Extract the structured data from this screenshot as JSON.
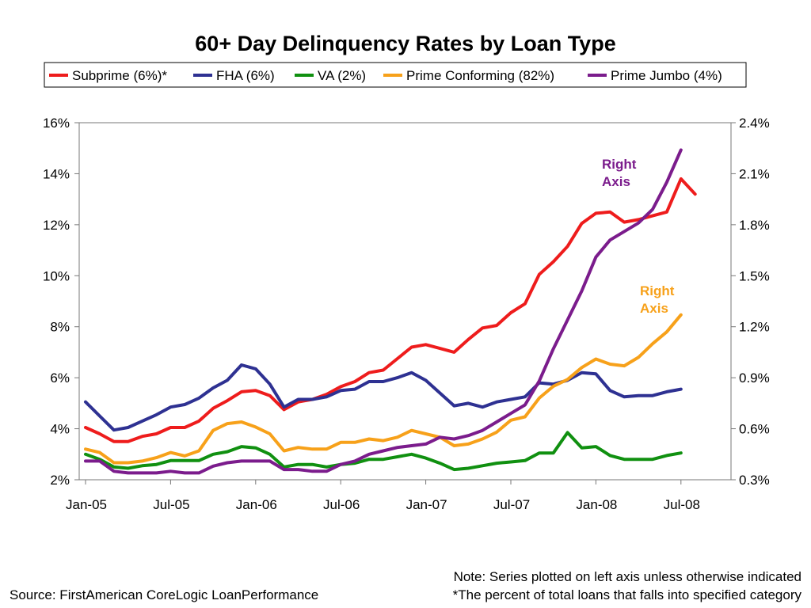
{
  "chart_data": {
    "type": "line",
    "title": "60+ Day Delinquency Rates by Loan Type",
    "x_ticks": [
      "Jan-05",
      "Jul-05",
      "Jan-06",
      "Jul-06",
      "Jan-07",
      "Jul-07",
      "Jan-08",
      "Jul-08"
    ],
    "x_start": "Jan-05",
    "x_end": "Aug-08",
    "left_axis": {
      "min": 2,
      "max": 16,
      "tick_labels": [
        "2%",
        "4%",
        "6%",
        "8%",
        "10%",
        "12%",
        "14%",
        "16%"
      ]
    },
    "right_axis": {
      "min": 0.3,
      "max": 2.4,
      "tick_labels": [
        "0.3%",
        "0.6%",
        "0.9%",
        "1.2%",
        "1.5%",
        "1.8%",
        "2.1%",
        "2.4%"
      ]
    },
    "grid": false,
    "legend_position": "top",
    "series": [
      {
        "name": "Subprime (6%)*",
        "color": "#ee1c1c",
        "axis": "left",
        "values": [
          4.05,
          3.8,
          3.5,
          3.5,
          3.7,
          3.8,
          4.05,
          4.05,
          4.3,
          4.8,
          5.1,
          5.45,
          5.5,
          5.3,
          4.75,
          5.05,
          5.15,
          5.35,
          5.65,
          5.85,
          6.2,
          6.3,
          6.75,
          7.2,
          7.3,
          7.15,
          7.0,
          7.5,
          7.95,
          8.05,
          8.55,
          8.9,
          10.05,
          10.55,
          11.15,
          12.05,
          12.45,
          12.5,
          12.1,
          12.2,
          12.35,
          12.5,
          13.8,
          13.2
        ]
      },
      {
        "name": "FHA (6%)",
        "color": "#2e3192",
        "axis": "left",
        "values": [
          5.05,
          4.5,
          3.95,
          4.05,
          4.3,
          4.55,
          4.85,
          4.95,
          5.2,
          5.6,
          5.9,
          6.5,
          6.35,
          5.75,
          4.85,
          5.15,
          5.15,
          5.25,
          5.5,
          5.55,
          5.85,
          5.85,
          6.0,
          6.2,
          5.9,
          5.4,
          4.9,
          5.0,
          4.85,
          5.05,
          5.15,
          5.25,
          5.8,
          5.75,
          5.9,
          6.2,
          6.15,
          5.5,
          5.25,
          5.3,
          5.3,
          5.45,
          5.55,
          null
        ]
      },
      {
        "name": "VA (2%)",
        "color": "#109010",
        "axis": "left",
        "values": [
          3.0,
          2.8,
          2.5,
          2.45,
          2.55,
          2.6,
          2.75,
          2.75,
          2.75,
          3.0,
          3.1,
          3.3,
          3.25,
          3.0,
          2.5,
          2.6,
          2.6,
          2.5,
          2.6,
          2.65,
          2.8,
          2.8,
          2.9,
          3.0,
          2.85,
          2.65,
          2.4,
          2.45,
          2.55,
          2.65,
          2.7,
          2.75,
          3.05,
          3.05,
          3.85,
          3.25,
          3.3,
          2.95,
          2.8,
          2.8,
          2.8,
          2.95,
          3.05,
          null
        ]
      },
      {
        "name": "Prime Conforming (82%)",
        "color": "#f7a11a",
        "axis": "right",
        "values": [
          0.48,
          0.46,
          0.4,
          0.4,
          0.41,
          0.43,
          0.46,
          0.44,
          0.47,
          0.59,
          0.63,
          0.64,
          0.61,
          0.57,
          0.47,
          0.49,
          0.48,
          0.48,
          0.52,
          0.52,
          0.54,
          0.53,
          0.55,
          0.59,
          0.57,
          0.55,
          0.5,
          0.51,
          0.54,
          0.58,
          0.65,
          0.67,
          0.78,
          0.85,
          0.89,
          0.96,
          1.01,
          0.98,
          0.97,
          1.02,
          1.1,
          1.17,
          1.27,
          null
        ]
      },
      {
        "name": "Prime Jumbo (4%)",
        "color": "#7b1c8c",
        "axis": "right",
        "values": [
          0.41,
          0.41,
          0.35,
          0.34,
          0.34,
          0.34,
          0.35,
          0.34,
          0.34,
          0.38,
          0.4,
          0.41,
          0.41,
          0.41,
          0.36,
          0.36,
          0.35,
          0.35,
          0.39,
          0.41,
          0.45,
          0.47,
          0.49,
          0.5,
          0.51,
          0.55,
          0.54,
          0.56,
          0.59,
          0.64,
          0.69,
          0.74,
          0.88,
          1.07,
          1.24,
          1.41,
          1.61,
          1.71,
          1.76,
          1.81,
          1.89,
          2.05,
          2.24,
          null
        ]
      }
    ],
    "annotations": [
      {
        "text": [
          "Right",
          "Axis"
        ],
        "color": "#7b1c8c",
        "near_series": "Prime Jumbo (4%)"
      },
      {
        "text": [
          "Right",
          "Axis"
        ],
        "color": "#f7a11a",
        "near_series": "Prime Conforming (82%)"
      }
    ]
  },
  "footer": {
    "source": "Source: FirstAmerican CoreLogic LoanPerformance",
    "note_line1": "Note: Series plotted on left axis unless otherwise indicated",
    "note_line2": "*The percent of total loans that falls into specified category"
  }
}
